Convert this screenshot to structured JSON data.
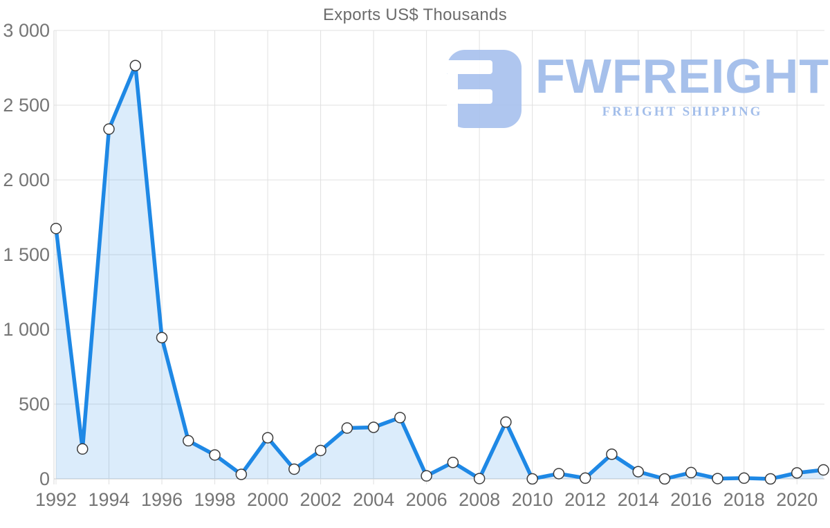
{
  "title": "Exports US$ Thousands",
  "watermark": {
    "brand": "FWFREIGHT",
    "tagline": "FREIGHT SHIPPING",
    "brand_color": "#9fbbea",
    "icon_color": "#a9c2ee"
  },
  "chart_data": {
    "type": "area",
    "title": "Exports US$ Thousands",
    "xlabel": "",
    "ylabel": "",
    "x": [
      1992,
      1993,
      1994,
      1995,
      1996,
      1997,
      1998,
      1999,
      2000,
      2001,
      2002,
      2003,
      2004,
      2005,
      2006,
      2007,
      2008,
      2009,
      2010,
      2011,
      2012,
      2013,
      2014,
      2015,
      2016,
      2017,
      2018,
      2019,
      2020,
      2021
    ],
    "values": [
      1675,
      200,
      2340,
      2765,
      945,
      255,
      160,
      30,
      275,
      65,
      190,
      340,
      345,
      410,
      20,
      110,
      2,
      380,
      0,
      35,
      5,
      165,
      48,
      0,
      42,
      2,
      5,
      0,
      40,
      60
    ],
    "ylim": [
      0,
      3000
    ],
    "yticks": [
      0,
      500,
      1000,
      1500,
      2000,
      2500,
      3000
    ],
    "ytick_labels": [
      "0",
      "500",
      "1 000",
      "1 500",
      "2 000",
      "2 500",
      "3 000"
    ],
    "xtick_labels": [
      "1992",
      "1994",
      "1996",
      "1998",
      "2000",
      "2002",
      "2004",
      "2006",
      "2008",
      "2010",
      "2012",
      "2014",
      "2016",
      "2018",
      "2020"
    ],
    "grid": true,
    "legend": false,
    "line_color": "#1e88e5",
    "fill_color": "rgba(30,136,229,0.16)",
    "marker_fill": "#ffffff",
    "marker_stroke": "#3c3c3c",
    "grid_color": "#e0e0e0",
    "zero_line_color": "#c9c9c9",
    "axis_line_color": "#d9d9d9",
    "tick_text_color": "#757575"
  }
}
